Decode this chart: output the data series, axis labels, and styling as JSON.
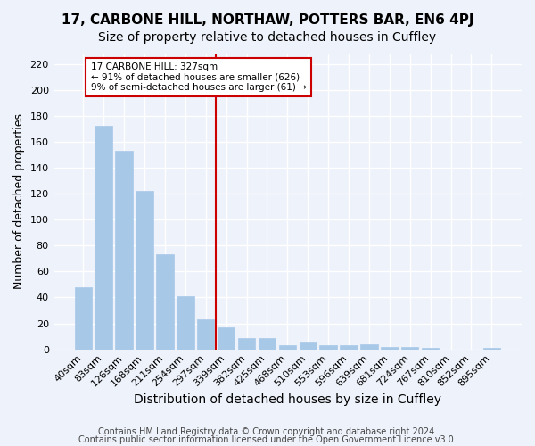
{
  "title": "17, CARBONE HILL, NORTHAW, POTTERS BAR, EN6 4PJ",
  "subtitle": "Size of property relative to detached houses in Cuffley",
  "xlabel": "Distribution of detached houses by size in Cuffley",
  "ylabel": "Number of detached properties",
  "bar_color": "#a8c8e8",
  "bar_edge_color": "#a8c8e8",
  "categories": [
    "40sqm",
    "83sqm",
    "126sqm",
    "168sqm",
    "211sqm",
    "254sqm",
    "297sqm",
    "339sqm",
    "382sqm",
    "425sqm",
    "468sqm",
    "510sqm",
    "553sqm",
    "596sqm",
    "639sqm",
    "681sqm",
    "724sqm",
    "767sqm",
    "810sqm",
    "852sqm",
    "895sqm"
  ],
  "values": [
    48,
    172,
    153,
    122,
    73,
    41,
    23,
    17,
    9,
    9,
    3,
    6,
    3,
    3,
    4,
    2,
    2,
    1,
    0,
    0,
    1
  ],
  "vline_x": 6.5,
  "vline_color": "#cc0000",
  "annotation_title": "17 CARBONE HILL: 327sqm",
  "annotation_line1": "← 91% of detached houses are smaller (626)",
  "annotation_line2": "9% of semi-detached houses are larger (61) →",
  "annotation_box_color": "#ffffff",
  "annotation_box_edge": "#cc0000",
  "ylim": [
    0,
    228
  ],
  "yticks": [
    0,
    20,
    40,
    60,
    80,
    100,
    120,
    140,
    160,
    180,
    200,
    220
  ],
  "footer1": "Contains HM Land Registry data © Crown copyright and database right 2024.",
  "footer2": "Contains public sector information licensed under the Open Government Licence v3.0.",
  "background_color": "#eef2fa",
  "grid_color": "#ffffff",
  "title_fontsize": 11,
  "subtitle_fontsize": 10,
  "xlabel_fontsize": 10,
  "ylabel_fontsize": 9,
  "tick_fontsize": 8,
  "footer_fontsize": 7
}
